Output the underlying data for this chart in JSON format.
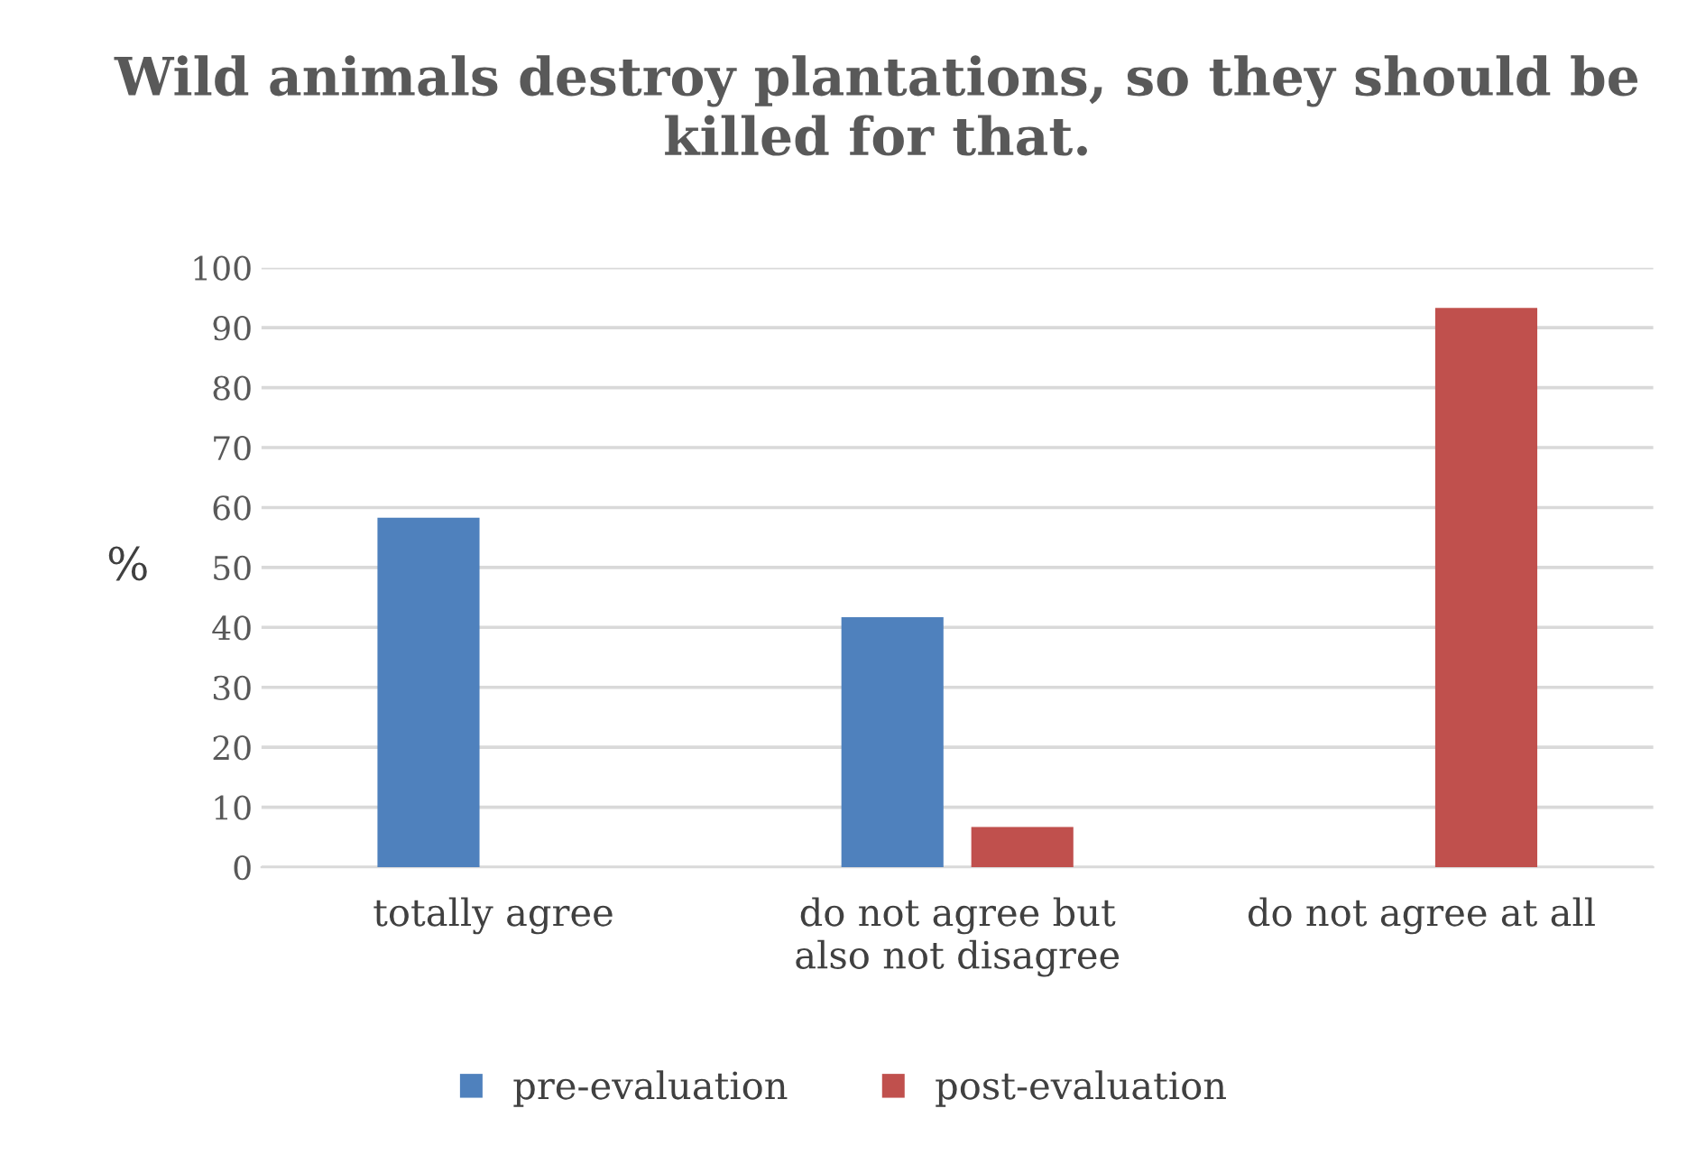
{
  "chart_data": {
    "type": "bar",
    "title": "Wild animals destroy plantations, so they should be killed for that.",
    "ylabel": "%",
    "categories": [
      "totally agree",
      "do not agree but\nalso not disagree",
      "do not agree at all"
    ],
    "series": [
      {
        "name": "pre-evaluation",
        "color": "#4f81bd",
        "values": [
          58.3,
          41.7,
          0
        ]
      },
      {
        "name": "post-evaluation",
        "color": "#c0504d",
        "values": [
          0,
          6.7,
          93.3
        ]
      }
    ],
    "ylim": [
      0,
      100
    ],
    "yticks": [
      0,
      10,
      20,
      30,
      40,
      50,
      60,
      70,
      80,
      90,
      100
    ],
    "grid": "y",
    "legend": "bottom"
  }
}
